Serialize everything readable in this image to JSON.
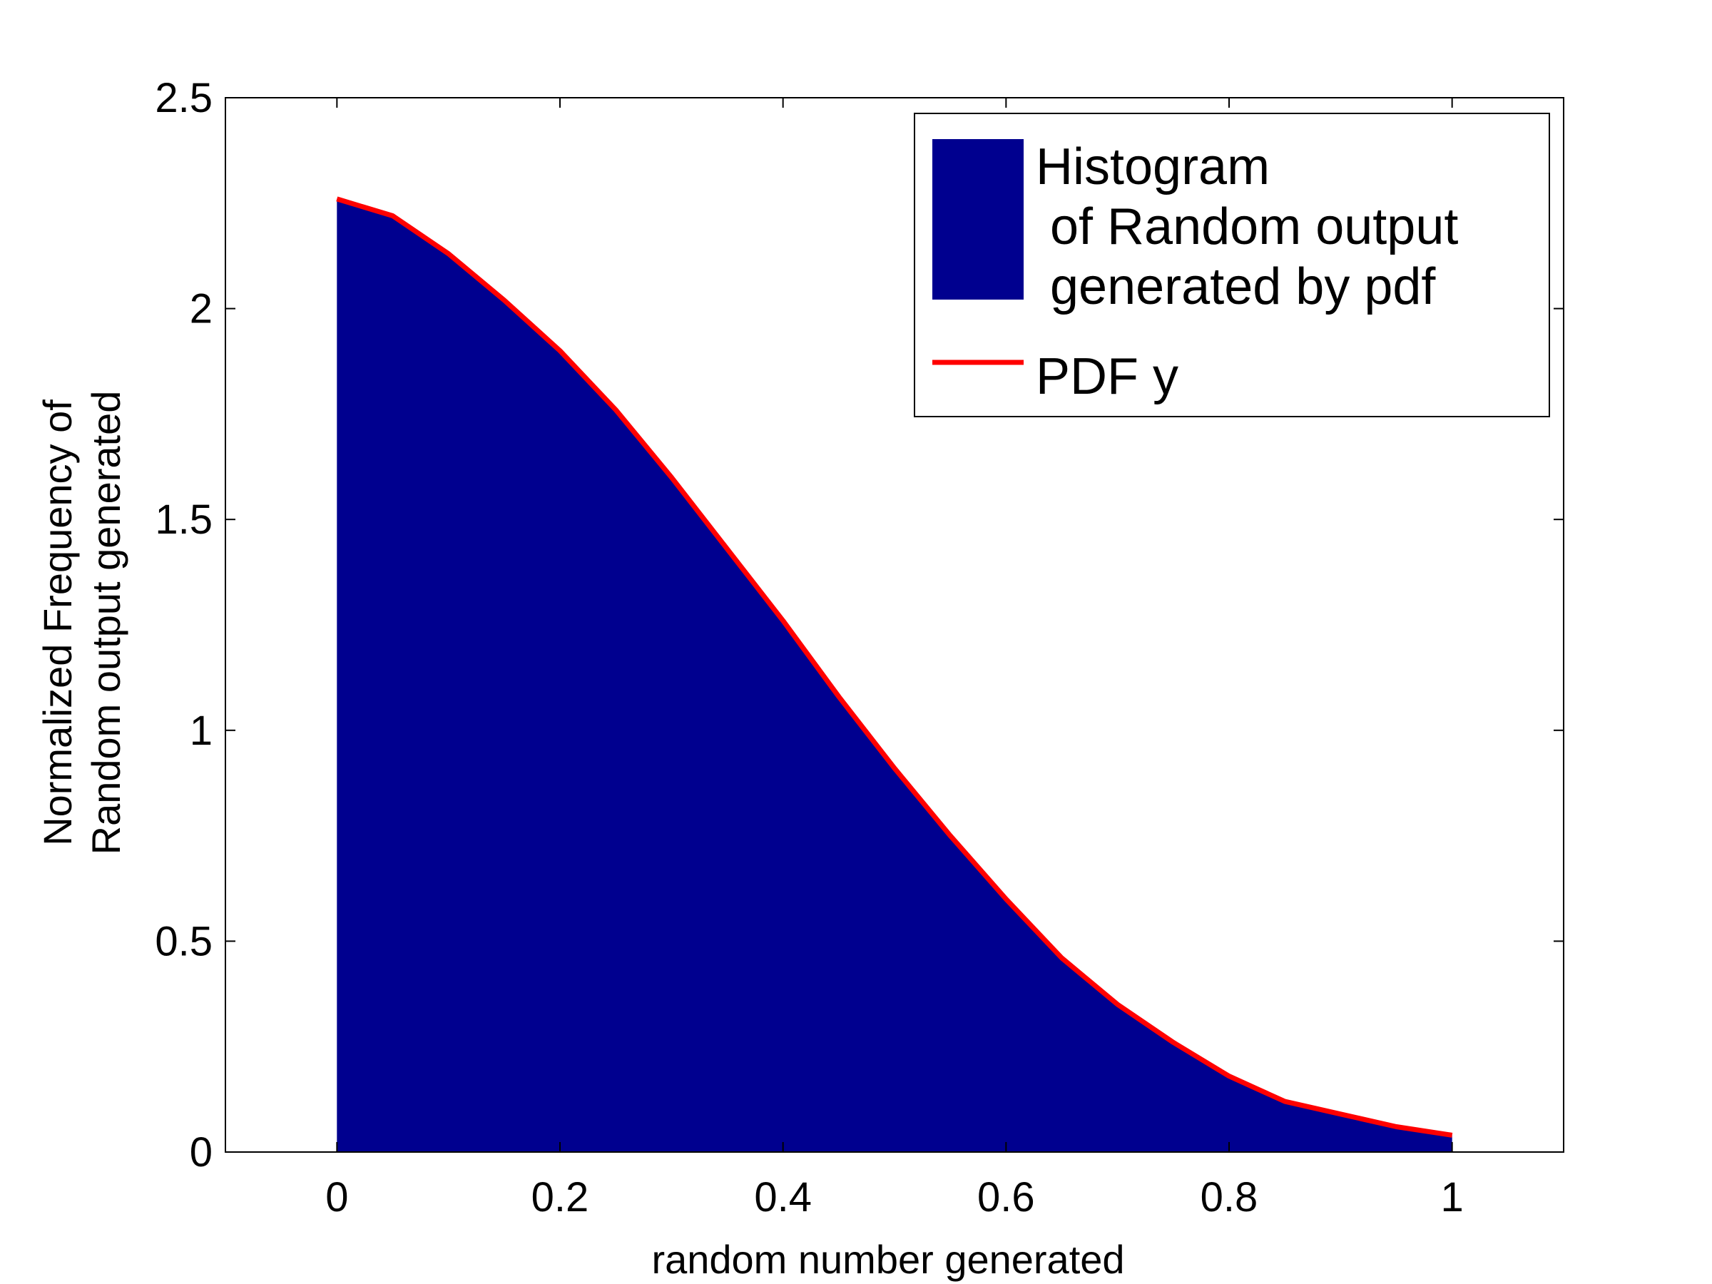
{
  "chart_data": {
    "type": "histogram",
    "title": "",
    "xlabel": "random number generated",
    "ylabel_lines": [
      "Normalized Frequency of",
      "Random output generated"
    ],
    "xlim": [
      -0.1,
      1.1
    ],
    "ylim": [
      0,
      2.5
    ],
    "x_ticks": [
      0,
      0.2,
      0.4,
      0.6,
      0.8,
      1
    ],
    "x_tick_labels": [
      "0",
      "0.2",
      "0.4",
      "0.6",
      "0.8",
      "1"
    ],
    "y_ticks": [
      0,
      0.5,
      1,
      1.5,
      2,
      2.5
    ],
    "y_tick_labels": [
      "0",
      "0.5",
      "1",
      "1.5",
      "2",
      "2.5"
    ],
    "grid": false,
    "legend_position": "top-right",
    "series": [
      {
        "name": "Histogram of Random output generated by pdf",
        "legend_lines": [
          "Histogram",
          " of Random output",
          " generated by pdf"
        ],
        "kind": "histogram",
        "color": "#00008f",
        "bin_range": [
          0,
          1
        ],
        "x": [
          0,
          0.05,
          0.1,
          0.15,
          0.2,
          0.25,
          0.3,
          0.35,
          0.4,
          0.45,
          0.5,
          0.55,
          0.6,
          0.65,
          0.7,
          0.75,
          0.8,
          0.85,
          0.9,
          0.95,
          1
        ],
        "y": [
          2.26,
          2.22,
          2.13,
          2.02,
          1.9,
          1.76,
          1.6,
          1.43,
          1.26,
          1.08,
          0.91,
          0.75,
          0.6,
          0.46,
          0.35,
          0.26,
          0.18,
          0.12,
          0.09,
          0.06,
          0.04
        ]
      },
      {
        "name": "PDF y",
        "legend_lines": [
          "PDF y"
        ],
        "kind": "line",
        "color": "#ff0000",
        "x": [
          0,
          0.05,
          0.1,
          0.15,
          0.2,
          0.25,
          0.3,
          0.35,
          0.4,
          0.45,
          0.5,
          0.55,
          0.6,
          0.65,
          0.7,
          0.75,
          0.8,
          0.85,
          0.9,
          0.95,
          1
        ],
        "y": [
          2.26,
          2.22,
          2.13,
          2.02,
          1.9,
          1.76,
          1.6,
          1.43,
          1.26,
          1.08,
          0.91,
          0.75,
          0.6,
          0.46,
          0.35,
          0.26,
          0.18,
          0.12,
          0.09,
          0.06,
          0.04
        ]
      }
    ]
  }
}
